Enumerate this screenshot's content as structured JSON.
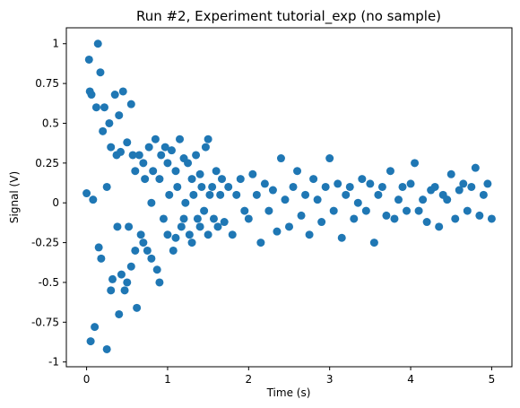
{
  "chart_data": {
    "type": "scatter",
    "title": "Run #2, Experiment tutorial_exp (no sample)",
    "xlabel": "Time (s)",
    "ylabel": "Signal (V)",
    "xlim": [
      -0.25,
      5.25
    ],
    "ylim": [
      -1.03,
      1.1
    ],
    "xticks": [
      0,
      1,
      2,
      3,
      4,
      5
    ],
    "xtick_labels": [
      "0",
      "1",
      "2",
      "3",
      "4",
      "5"
    ],
    "yticks": [
      -1,
      -0.75,
      -0.5,
      -0.25,
      0,
      0.25,
      0.5,
      0.75,
      1
    ],
    "ytick_labels": [
      "-1",
      "-0.75",
      "-0.5",
      "-0.25",
      "0",
      "0.25",
      "0.5",
      "0.75",
      "1"
    ],
    "grid": false,
    "color": "#1f77b4",
    "series": [
      {
        "x": [
          0.0,
          0.03,
          0.04,
          0.05,
          0.06,
          0.08,
          0.1,
          0.12,
          0.14,
          0.15,
          0.17,
          0.18,
          0.2,
          0.22,
          0.25,
          0.25,
          0.28,
          0.3,
          0.3,
          0.32,
          0.35,
          0.37,
          0.38,
          0.4,
          0.4,
          0.42,
          0.43,
          0.45,
          0.47,
          0.5,
          0.5,
          0.52,
          0.55,
          0.55,
          0.57,
          0.6,
          0.6,
          0.62,
          0.65,
          0.67,
          0.7,
          0.7,
          0.72,
          0.75,
          0.77,
          0.8,
          0.8,
          0.82,
          0.85,
          0.87,
          0.9,
          0.9,
          0.92,
          0.95,
          0.97,
          1.0,
          1.0,
          1.02,
          1.05,
          1.07,
          1.1,
          1.1,
          1.12,
          1.15,
          1.17,
          1.2,
          1.2,
          1.22,
          1.25,
          1.27,
          1.3,
          1.3,
          1.32,
          1.35,
          1.37,
          1.4,
          1.4,
          1.42,
          1.45,
          1.47,
          1.5,
          1.5,
          1.52,
          1.55,
          1.57,
          1.6,
          1.62,
          1.65,
          1.67,
          1.7,
          1.75,
          1.8,
          1.85,
          1.9,
          1.95,
          2.0,
          2.05,
          2.1,
          2.15,
          2.2,
          2.25,
          2.3,
          2.35,
          2.4,
          2.45,
          2.5,
          2.55,
          2.6,
          2.65,
          2.7,
          2.75,
          2.8,
          2.85,
          2.9,
          2.95,
          3.0,
          3.05,
          3.1,
          3.15,
          3.2,
          3.25,
          3.3,
          3.35,
          3.4,
          3.45,
          3.5,
          3.55,
          3.6,
          3.65,
          3.7,
          3.75,
          3.8,
          3.85,
          3.9,
          3.95,
          4.0,
          4.05,
          4.1,
          4.15,
          4.2,
          4.25,
          4.3,
          4.35,
          4.4,
          4.45,
          4.5,
          4.55,
          4.6,
          4.65,
          4.7,
          4.75,
          4.8,
          4.85,
          4.9,
          4.95,
          5.0
        ],
        "y": [
          0.06,
          0.9,
          0.7,
          -0.87,
          0.68,
          0.02,
          -0.78,
          0.6,
          1.0,
          -0.28,
          0.82,
          -0.35,
          0.45,
          0.6,
          -0.92,
          0.1,
          0.5,
          -0.55,
          0.35,
          -0.48,
          0.68,
          0.3,
          -0.15,
          0.55,
          -0.7,
          0.32,
          -0.45,
          0.7,
          -0.55,
          0.38,
          -0.5,
          -0.15,
          0.62,
          -0.4,
          0.3,
          -0.3,
          0.2,
          -0.66,
          0.3,
          -0.2,
          0.25,
          -0.25,
          0.15,
          -0.3,
          0.35,
          0.0,
          -0.35,
          0.2,
          0.4,
          -0.42,
          0.15,
          -0.5,
          0.3,
          -0.1,
          0.35,
          0.25,
          -0.2,
          0.05,
          0.33,
          -0.3,
          0.2,
          -0.22,
          0.1,
          0.4,
          -0.15,
          0.28,
          -0.1,
          0.0,
          0.25,
          -0.2,
          0.15,
          -0.25,
          0.05,
          0.3,
          -0.1,
          0.18,
          -0.15,
          0.1,
          -0.05,
          0.35,
          0.4,
          -0.2,
          0.05,
          0.1,
          -0.1,
          0.2,
          -0.15,
          0.05,
          0.15,
          -0.12,
          0.1,
          -0.2,
          0.05,
          0.15,
          -0.05,
          -0.1,
          0.18,
          0.05,
          -0.25,
          0.12,
          -0.05,
          0.08,
          -0.18,
          0.28,
          0.02,
          -0.15,
          0.1,
          0.2,
          -0.08,
          0.05,
          -0.2,
          0.15,
          0.02,
          -0.12,
          0.1,
          0.28,
          -0.05,
          0.12,
          -0.22,
          0.05,
          0.1,
          -0.1,
          0.0,
          0.15,
          -0.05,
          0.12,
          -0.25,
          0.05,
          0.1,
          -0.08,
          0.2,
          -0.1,
          0.02,
          0.1,
          -0.05,
          0.12,
          0.25,
          -0.05,
          0.02,
          -0.12,
          0.08,
          0.1,
          -0.15,
          0.05,
          0.02,
          0.18,
          -0.1,
          0.08,
          0.12,
          -0.05,
          0.1,
          0.22,
          -0.08,
          0.05,
          0.12,
          -0.1
        ]
      }
    ]
  }
}
